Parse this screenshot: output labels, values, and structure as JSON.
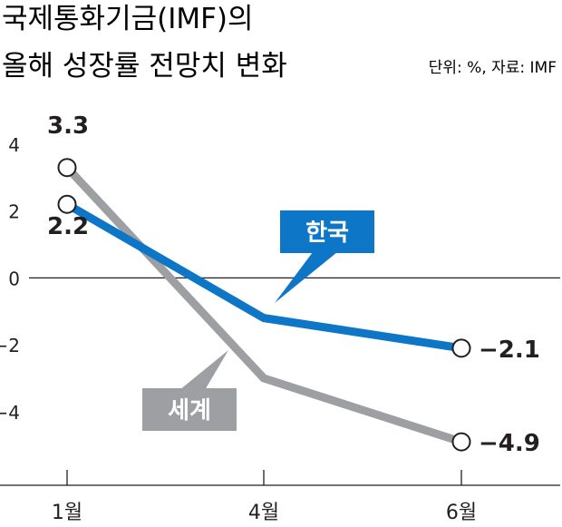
{
  "chart_data": {
    "type": "line",
    "title_line1": "국제통화기금(IMF)의",
    "title_line2": "올해 성장률 전망치 변화",
    "unit_note": "단위: %, 자료: IMF",
    "categories": [
      "1월",
      "4월",
      "6월"
    ],
    "ylim": [
      -6.2,
      5
    ],
    "yticks": [
      4,
      2,
      0,
      -2,
      -4
    ],
    "ytick_labels": [
      "4",
      "2",
      "0",
      "−2",
      "−4"
    ],
    "series": [
      {
        "name": "세계",
        "values": [
          3.3,
          -3.0,
          -4.9
        ],
        "color": "#9d9fa2",
        "labels": [
          "3.3",
          "",
          "−4.9"
        ],
        "marker_indices": [
          0,
          2
        ]
      },
      {
        "name": "한국",
        "values": [
          2.2,
          -1.2,
          -2.1
        ],
        "color": "#0e76c7",
        "labels": [
          "2.2",
          "",
          "−2.1"
        ],
        "marker_indices": [
          0,
          2
        ]
      }
    ]
  }
}
